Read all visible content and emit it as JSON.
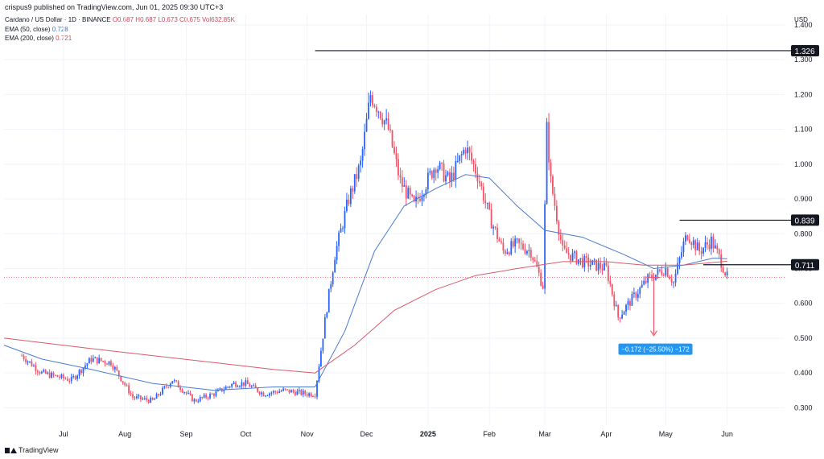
{
  "header": {
    "publisher": "crispus9 published on TradingView.com, Jun 01, 2025 09:30 UTC+3",
    "symbol_line": "Cardano / US Dollar · 1D · BINANCE",
    "ohlc": "O0.687  H0.687  L0.673  C0.675  Vol632.85K",
    "ema50_label": "EMA (50, close)",
    "ema50_value": "0.728",
    "ema200_label": "EMA (200, close)",
    "ema200_value": "0.721"
  },
  "footer": {
    "brand": "TradingView"
  },
  "colors": {
    "up": "#2962ff",
    "down": "#ef5367",
    "ema50": "#4a7bd0",
    "ema200": "#d85a6a",
    "grid": "#f0f3fa",
    "measure": "#2196f3"
  },
  "chart_data": {
    "type": "line",
    "currency": "USD",
    "ylim": [
      0.25,
      1.43
    ],
    "yticks": [
      "1.400",
      "1.300",
      "1.200",
      "1.100",
      "1.000",
      "0.900",
      "0.800",
      "0.700",
      "0.600",
      "0.500",
      "0.400",
      "0.300"
    ],
    "ytick_values": [
      1.4,
      1.3,
      1.2,
      1.1,
      1.0,
      0.9,
      0.8,
      0.7,
      0.6,
      0.5,
      0.4,
      0.3
    ],
    "xlim": [
      "2025-06-01",
      "2025-06-30"
    ],
    "xticks": [
      {
        "label": "Jul",
        "date": "2024-07-01",
        "bold": false
      },
      {
        "label": "Aug",
        "date": "2024-08-01",
        "bold": false
      },
      {
        "label": "Sep",
        "date": "2024-09-01",
        "bold": false
      },
      {
        "label": "Oct",
        "date": "2024-10-01",
        "bold": false
      },
      {
        "label": "Nov",
        "date": "2024-11-01",
        "bold": false
      },
      {
        "label": "Dec",
        "date": "2024-12-01",
        "bold": false
      },
      {
        "label": "2025",
        "date": "2025-01-01",
        "bold": true
      },
      {
        "label": "Feb",
        "date": "2025-02-01",
        "bold": false
      },
      {
        "label": "Mar",
        "date": "2025-03-01",
        "bold": false
      },
      {
        "label": "Apr",
        "date": "2025-04-01",
        "bold": false
      },
      {
        "label": "May",
        "date": "2025-05-01",
        "bold": false
      },
      {
        "label": "Jun",
        "date": "2025-06-01",
        "bold": false
      }
    ],
    "series": [
      {
        "name": "price",
        "kind": "candlestick-close",
        "points": [
          [
            "2024-06-10",
            0.45
          ],
          [
            "2024-06-20",
            0.4
          ],
          [
            "2024-07-05",
            0.38
          ],
          [
            "2024-07-15",
            0.44
          ],
          [
            "2024-07-25",
            0.43
          ],
          [
            "2024-08-05",
            0.33
          ],
          [
            "2024-08-15",
            0.32
          ],
          [
            "2024-08-25",
            0.38
          ],
          [
            "2024-09-05",
            0.32
          ],
          [
            "2024-09-15",
            0.34
          ],
          [
            "2024-09-25",
            0.37
          ],
          [
            "2024-10-01",
            0.37
          ],
          [
            "2024-10-10",
            0.34
          ],
          [
            "2024-10-20",
            0.35
          ],
          [
            "2024-11-01",
            0.34
          ],
          [
            "2024-11-05",
            0.34
          ],
          [
            "2024-11-10",
            0.55
          ],
          [
            "2024-11-15",
            0.74
          ],
          [
            "2024-11-22",
            0.9
          ],
          [
            "2024-11-28",
            1.0
          ],
          [
            "2024-12-03",
            1.2
          ],
          [
            "2024-12-08",
            1.15
          ],
          [
            "2024-12-12",
            1.1
          ],
          [
            "2024-12-18",
            0.95
          ],
          [
            "2024-12-25",
            0.88
          ],
          [
            "2025-01-05",
            1.0
          ],
          [
            "2025-01-12",
            0.95
          ],
          [
            "2025-01-20",
            1.05
          ],
          [
            "2025-01-26",
            0.97
          ],
          [
            "2025-02-01",
            0.85
          ],
          [
            "2025-02-08",
            0.75
          ],
          [
            "2025-02-15",
            0.77
          ],
          [
            "2025-02-22",
            0.75
          ],
          [
            "2025-02-28",
            0.65
          ],
          [
            "2025-03-02",
            1.1
          ],
          [
            "2025-03-04",
            0.95
          ],
          [
            "2025-03-10",
            0.75
          ],
          [
            "2025-03-20",
            0.72
          ],
          [
            "2025-04-01",
            0.7
          ],
          [
            "2025-04-07",
            0.56
          ],
          [
            "2025-04-15",
            0.62
          ],
          [
            "2025-04-22",
            0.67
          ],
          [
            "2025-05-01",
            0.7
          ],
          [
            "2025-05-05",
            0.66
          ],
          [
            "2025-05-10",
            0.77
          ],
          [
            "2025-05-12",
            0.8
          ],
          [
            "2025-05-18",
            0.75
          ],
          [
            "2025-05-24",
            0.78
          ],
          [
            "2025-05-29",
            0.72
          ],
          [
            "2025-06-01",
            0.675
          ]
        ]
      },
      {
        "name": "EMA (50, close)",
        "points": [
          [
            "2024-06-01",
            0.48
          ],
          [
            "2024-06-20",
            0.44
          ],
          [
            "2024-07-15",
            0.41
          ],
          [
            "2024-08-15",
            0.37
          ],
          [
            "2024-09-15",
            0.35
          ],
          [
            "2024-10-15",
            0.36
          ],
          [
            "2024-11-05",
            0.36
          ],
          [
            "2024-11-20",
            0.52
          ],
          [
            "2024-12-05",
            0.75
          ],
          [
            "2024-12-20",
            0.88
          ],
          [
            "2025-01-05",
            0.93
          ],
          [
            "2025-01-20",
            0.97
          ],
          [
            "2025-02-01",
            0.96
          ],
          [
            "2025-02-15",
            0.88
          ],
          [
            "2025-03-01",
            0.81
          ],
          [
            "2025-03-20",
            0.79
          ],
          [
            "2025-04-10",
            0.74
          ],
          [
            "2025-04-25",
            0.7
          ],
          [
            "2025-05-10",
            0.71
          ],
          [
            "2025-05-25",
            0.73
          ],
          [
            "2025-06-01",
            0.728
          ]
        ]
      },
      {
        "name": "EMA (200, close)",
        "points": [
          [
            "2024-06-01",
            0.5
          ],
          [
            "2024-07-15",
            0.47
          ],
          [
            "2024-08-15",
            0.45
          ],
          [
            "2024-09-15",
            0.43
          ],
          [
            "2024-10-15",
            0.41
          ],
          [
            "2024-11-05",
            0.4
          ],
          [
            "2024-11-25",
            0.48
          ],
          [
            "2024-12-15",
            0.58
          ],
          [
            "2025-01-05",
            0.64
          ],
          [
            "2025-01-25",
            0.68
          ],
          [
            "2025-02-15",
            0.7
          ],
          [
            "2025-03-10",
            0.72
          ],
          [
            "2025-04-01",
            0.72
          ],
          [
            "2025-04-20",
            0.71
          ],
          [
            "2025-05-10",
            0.71
          ],
          [
            "2025-06-01",
            0.721
          ]
        ]
      }
    ],
    "levels": [
      {
        "value": 1.326,
        "label": "1.326",
        "from": "2024-11-05"
      },
      {
        "value": 0.839,
        "label": "0.839",
        "from": "2025-05-08"
      },
      {
        "value": 0.711,
        "label": "0.711",
        "from": "2025-05-20"
      }
    ],
    "current_price": 0.675,
    "measure": {
      "date": "2025-04-25",
      "from": 0.675,
      "to": 0.503,
      "label": "−0.172 (−25.50%) −172"
    }
  }
}
